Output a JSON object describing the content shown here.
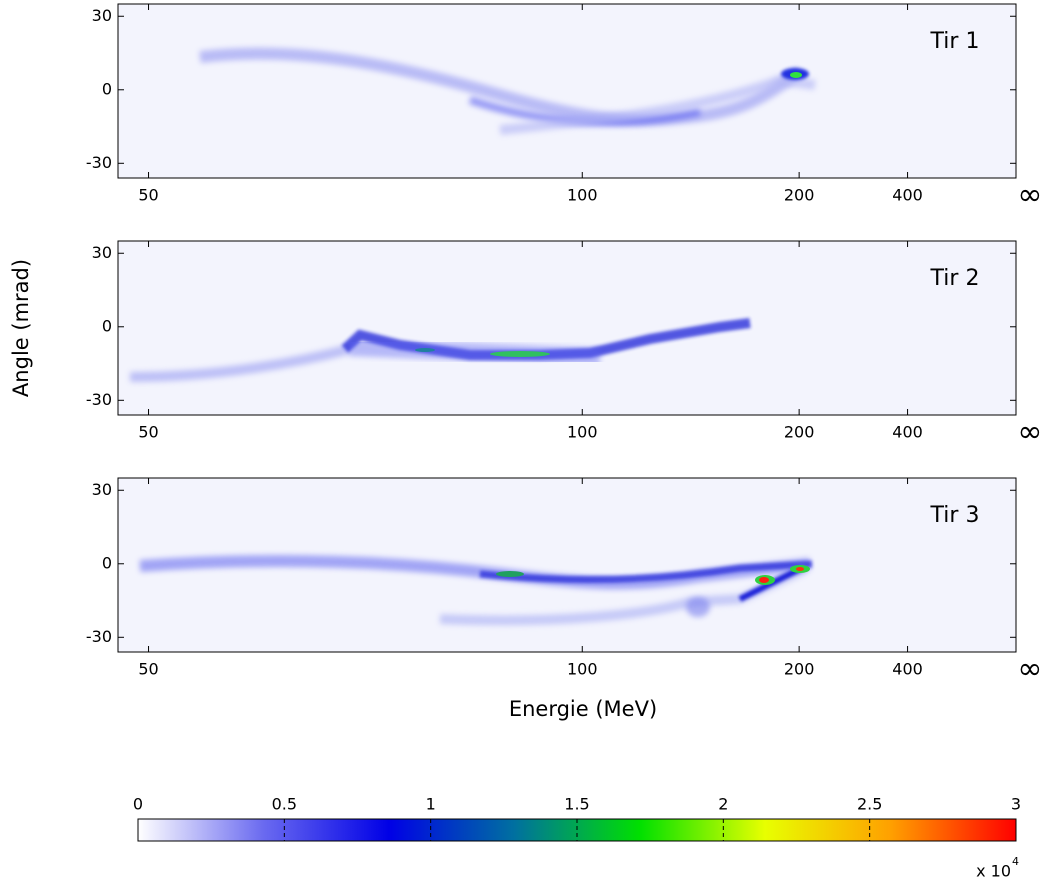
{
  "chart_data": [
    {
      "type": "heatmap",
      "title": "Tir 1",
      "ylim": [
        -36,
        35
      ],
      "yticks": [
        -30,
        0,
        30
      ],
      "xscale": "inverse",
      "xlim": [
        48.3,
        null
      ],
      "xticks": [
        50,
        100,
        200,
        400,
        {
          "value": null,
          "label": "∞"
        }
      ]
    },
    {
      "type": "heatmap",
      "title": "Tir 2",
      "ylabel": "Angle (mrad)",
      "ylim": [
        -36,
        35
      ],
      "yticks": [
        -30,
        0,
        30
      ],
      "xscale": "inverse",
      "xlim": [
        48.3,
        null
      ],
      "xticks": [
        50,
        100,
        200,
        400,
        {
          "value": null,
          "label": "∞"
        }
      ]
    },
    {
      "type": "heatmap",
      "title": "Tir 3",
      "xlabel": "Energie (MeV)",
      "ylim": [
        -36,
        35
      ],
      "yticks": [
        -30,
        0,
        30
      ],
      "xscale": "inverse",
      "xlim": [
        48.3,
        null
      ],
      "xticks": [
        50,
        100,
        200,
        400,
        {
          "value": null,
          "label": "∞"
        }
      ]
    },
    {
      "type": "colorbar",
      "lim": [
        0,
        3
      ],
      "ticks": [
        0,
        0.5,
        1,
        1.5,
        2,
        2.5,
        3
      ],
      "multiplier_label": "x 10",
      "multiplier_exponent": "4",
      "colors": [
        "#ffffff",
        "#6a6af0",
        "#0000e6",
        "#0070a0",
        "#00e000",
        "#e8ff00",
        "#ffa000",
        "#ff0000"
      ]
    }
  ]
}
